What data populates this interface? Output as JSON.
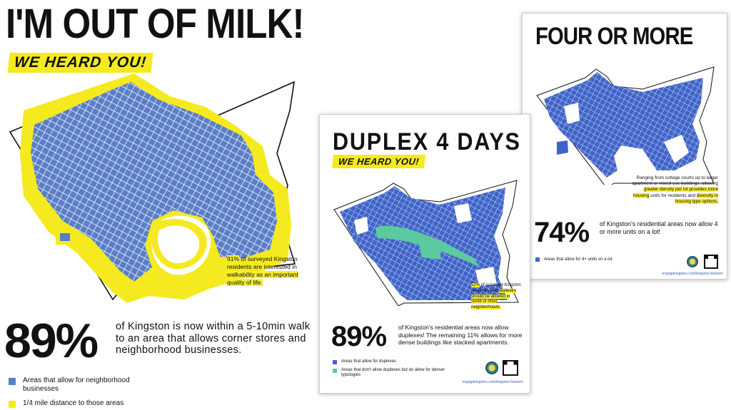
{
  "colors": {
    "blue": "#5b7fc7",
    "map_blue": "#3f64c9",
    "yellow": "#f4ea1f",
    "green": "#5ccaa0",
    "text": "#111111"
  },
  "left_poster": {
    "title": "I'M OUT OF MILK!",
    "heard": "WE HEARD YOU!",
    "note_pct": "91%",
    "note_rest": " of surveyed Kingston residents are interested in ",
    "note_highlight": "walkability as an important quality of life.",
    "big_pct": "89%",
    "description": "of Kingston is now within a 5-10min walk to an area that allows corner stores and neighborhood businesses.",
    "legend": [
      {
        "label": "Areas that allow for neighborhood businesses",
        "color": "#5b7fc7"
      },
      {
        "label": "1/4 mile distance to those areas",
        "color": "#f4ea1f"
      }
    ]
  },
  "duplex_poster": {
    "title": "DUPLEX 4 DAYS",
    "heard": "WE HEARD YOU!",
    "note_pct": "52%",
    "note_rest": " of surveyed Kingston residents said ",
    "note_highlight": "duplexes should be allowed in some or most neighborhoods.",
    "big_pct": "89%",
    "description": "of Kingston's residential areas now allow duplexes! The remaining 11% allows for more dense buildings like stacked apartments.",
    "legend": [
      {
        "label": "Areas that allow for duplexes",
        "color": "#3f64c9"
      },
      {
        "label": "Areas that don't allow duplexes but do allow for denser typologies",
        "color": "#5ccaa0"
      }
    ],
    "url": "engagekingston.com/kingston-forward"
  },
  "four_poster": {
    "title": "FOUR OR MORE",
    "note_a": "Ranging from cottage courts up to larger apartment or mixed use buildings, allowing ",
    "note_hl1": "greater density per lot provides more housing",
    "note_b": " units for residents and ",
    "note_hl2": "diversity in housing type options.",
    "big_pct": "74%",
    "description": "of Kingston's residential areas now allow 4 or more units on a lot!",
    "legend": [
      {
        "label": "Areas that allow for 4+ units on a lot",
        "color": "#3f64c9"
      }
    ],
    "url": "engagekingston.com/kingston-forward"
  }
}
